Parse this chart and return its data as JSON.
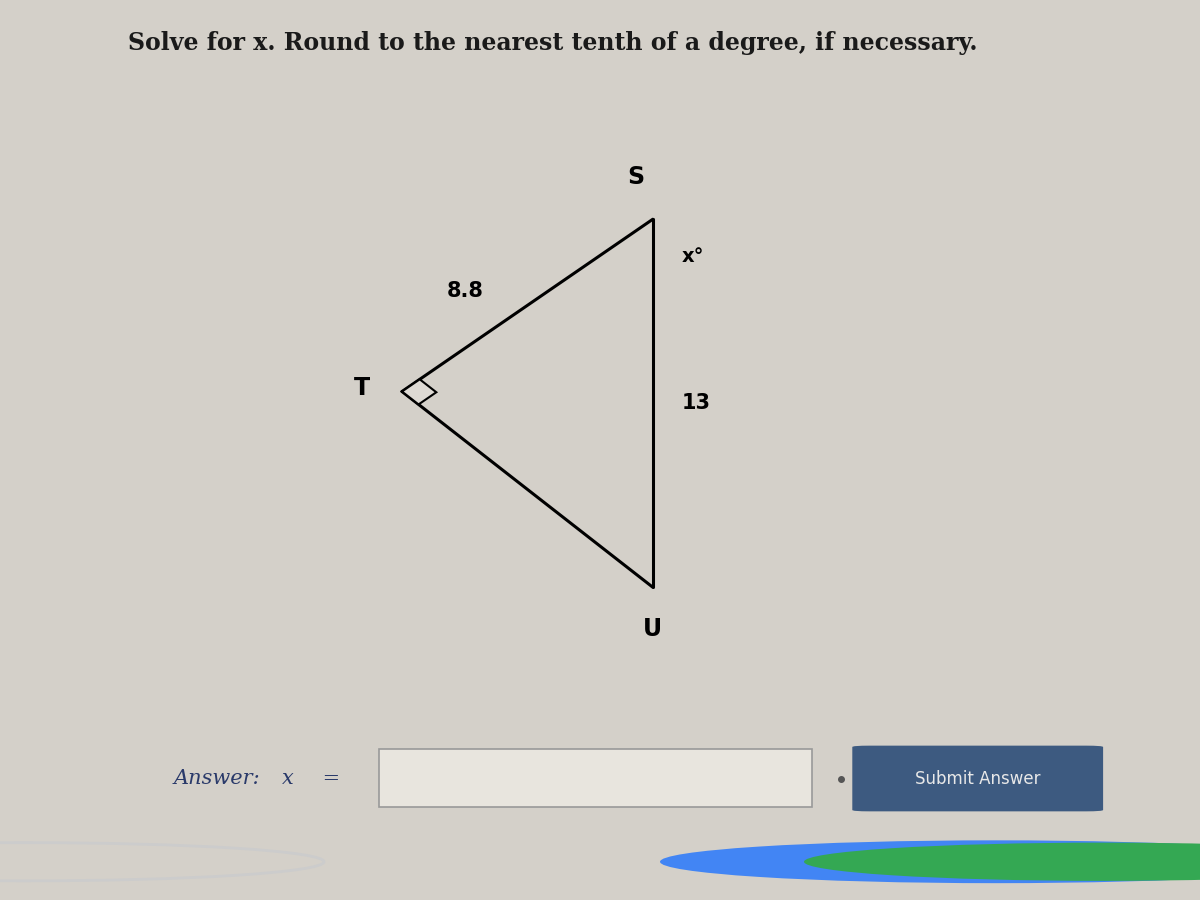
{
  "title": "Solve for x. Round to the nearest tenth of a degree, if necessary.",
  "triangle": {
    "S": [
      0.52,
      0.72
    ],
    "T": [
      0.3,
      0.5
    ],
    "U": [
      0.52,
      0.25
    ]
  },
  "labels": {
    "S": "S",
    "T": "T",
    "U": "U"
  },
  "side_labels": {
    "TS": "8.8",
    "SU": "13",
    "angle_S": "x°"
  },
  "answer_label": "Answer:  x =",
  "submit_label": "Submit Answer",
  "main_bg": "#d4d0c9",
  "content_bg": "#dedad4",
  "bottom_bg": "#ccc8c0",
  "taskbar_bg": "#1e3a5f",
  "title_color": "#1a1a1a",
  "triangle_color": "#000000",
  "submit_bg": "#3d5a80",
  "submit_text_color": "#e8e8e8",
  "answer_text_color": "#2a3a6a",
  "input_bg": "#e8e5de",
  "input_border": "#999999"
}
